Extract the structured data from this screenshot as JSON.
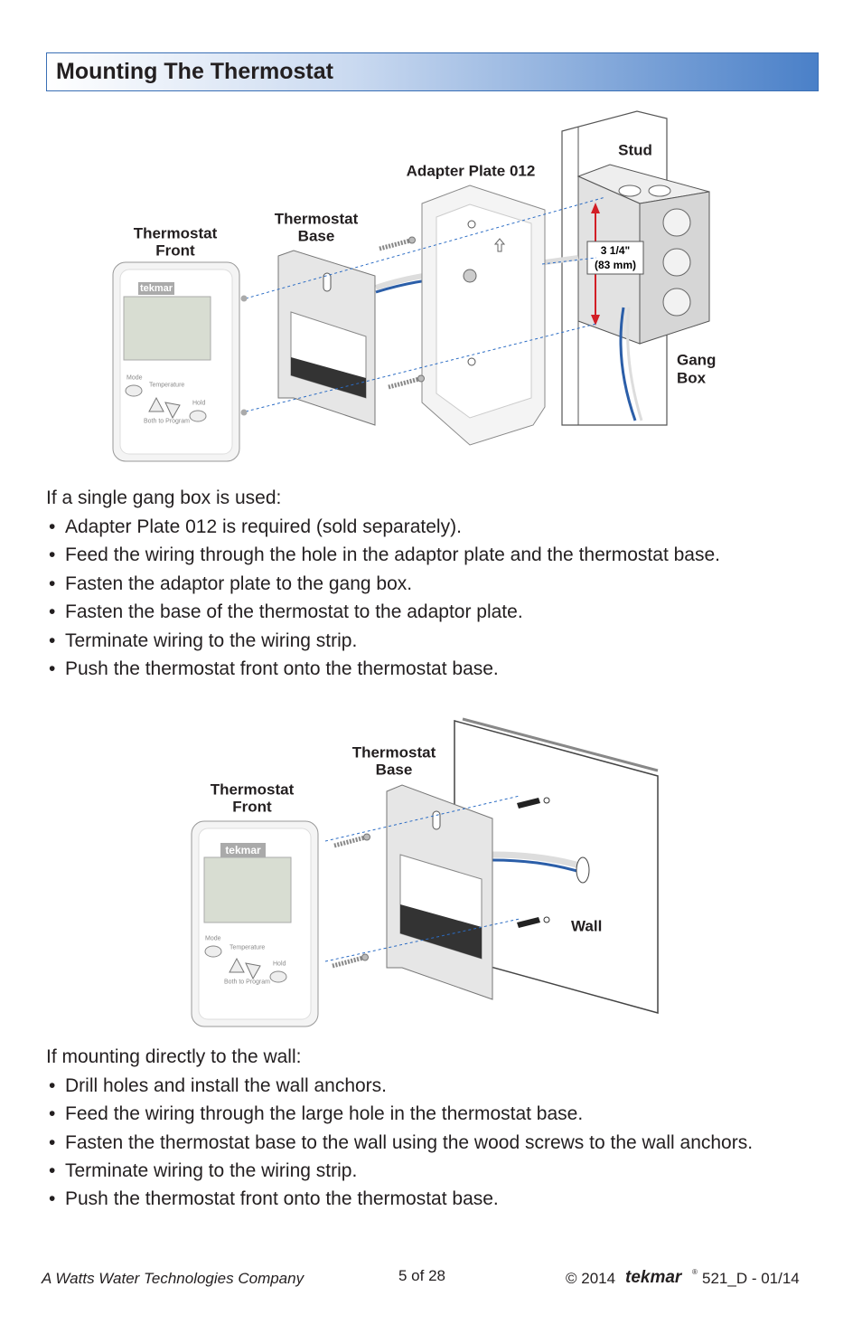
{
  "header": {
    "title": "Mounting The Thermostat"
  },
  "device": {
    "brand": "tekmar",
    "mode": "Mode",
    "temperature": "Temperature",
    "hold": "Hold",
    "program": "Both to Program"
  },
  "figure1": {
    "thermostat_front": [
      "Thermostat",
      "Front"
    ],
    "thermostat_base": [
      "Thermostat",
      "Base"
    ],
    "adapter_plate": "Adapter Plate 012",
    "stud": "Stud",
    "gang_box": [
      "Gang",
      "Box"
    ],
    "dimension": [
      "3 1/4\"",
      "(83 mm)"
    ]
  },
  "section1": {
    "intro": "If a single gang box is used:",
    "bullets": [
      "Adapter Plate 012 is required (sold separately).",
      "Feed the wiring through the hole in the adaptor plate and the thermostat base.",
      "Fasten the adaptor plate to the gang box.",
      "Fasten the base of the thermostat to the adaptor plate.",
      "Terminate wiring to the wiring strip.",
      "Push the thermostat front onto the thermostat base."
    ]
  },
  "figure2": {
    "thermostat_base": [
      "Thermostat",
      "Base"
    ],
    "thermostat_front": [
      "Thermostat",
      "Front"
    ],
    "wall": "Wall"
  },
  "section2": {
    "intro": "If mounting directly to the wall:",
    "bullets": [
      "Drill holes and install the wall anchors.",
      "Feed the wiring through the large hole in the thermostat base.",
      "Fasten the thermostat base to the wall using the wood screws to the wall anchors.",
      "Terminate wiring to the wiring strip.",
      "Push the thermostat front onto the thermostat base."
    ]
  },
  "footer": {
    "company": "A Watts Water Technologies Company",
    "page": "5 of 28",
    "copyright": "© 2014",
    "brand": "tekmar",
    "registered": "®",
    "code": "521_D - 01/14"
  }
}
